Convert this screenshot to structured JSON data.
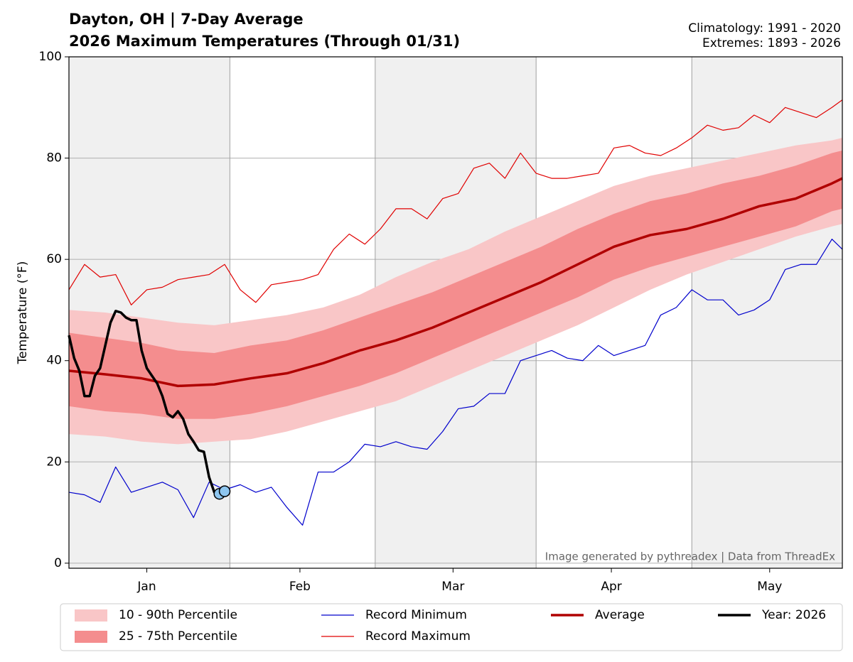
{
  "chart_data": {
    "type": "line",
    "title": "Dayton, OH | 7-Day Average",
    "subtitle": "2026 Maximum Temperatures (Through 01/31)",
    "right_notes": [
      "Climatology: 1991 - 2020",
      "Extremes: 1893 - 2026"
    ],
    "annotation": "Image generated by pythreadex | Data from ThreadEx",
    "y_label": "Temperature (°F)",
    "xlim": [
      1,
      150
    ],
    "ylim": [
      -1,
      100
    ],
    "yticks": [
      0,
      20,
      40,
      60,
      80,
      100
    ],
    "xticks": [
      {
        "value": 16,
        "label": "Jan"
      },
      {
        "value": 45.5,
        "label": "Feb"
      },
      {
        "value": 75,
        "label": "Mar"
      },
      {
        "value": 105.5,
        "label": "Apr"
      },
      {
        "value": 136,
        "label": "May"
      }
    ],
    "xgrid": [
      32,
      60,
      91,
      121
    ],
    "grid": true,
    "shade_color": "#f0f0f0",
    "legend": "bottom",
    "series": [
      {
        "name": "10 - 90th Percentile",
        "kind": "band",
        "color": "#f9c6c7",
        "x": [
          1,
          8,
          15,
          22,
          29,
          36,
          43,
          50,
          57,
          64,
          71,
          78,
          85,
          92,
          99,
          106,
          113,
          120,
          127,
          134,
          141,
          148,
          150
        ],
        "lower": [
          25.5,
          25,
          24,
          23.5,
          24,
          24.5,
          26,
          28,
          30,
          32,
          35,
          38,
          41,
          44,
          47,
          50.5,
          54,
          57,
          59.5,
          62,
          64.5,
          66.5,
          67
        ],
        "upper": [
          50,
          49.5,
          48.5,
          47.5,
          47,
          48,
          49,
          50.5,
          53,
          56.5,
          59.5,
          62,
          65.5,
          68.5,
          71.5,
          74.5,
          76.5,
          78,
          79.5,
          81,
          82.5,
          83.5,
          84
        ]
      },
      {
        "name": "25 - 75th Percentile",
        "kind": "band",
        "color": "#f48d8e",
        "x": [
          1,
          8,
          15,
          22,
          29,
          36,
          43,
          50,
          57,
          64,
          71,
          78,
          85,
          92,
          99,
          106,
          113,
          120,
          127,
          134,
          141,
          148,
          150
        ],
        "lower": [
          31,
          30,
          29.5,
          28.5,
          28.5,
          29.5,
          31,
          33,
          35,
          37.5,
          40.5,
          43.5,
          46.5,
          49.5,
          52.5,
          56,
          58.5,
          60.5,
          62.5,
          64.5,
          66.5,
          69.5,
          70
        ],
        "upper": [
          45.5,
          44.5,
          43.5,
          42,
          41.5,
          43,
          44,
          46,
          48.5,
          51,
          53.5,
          56.5,
          59.5,
          62.5,
          66,
          69,
          71.5,
          73,
          75,
          76.5,
          78.5,
          81,
          81.5
        ]
      },
      {
        "name": "Record Minimum",
        "kind": "line",
        "color": "#0000cc",
        "width": 1.2,
        "x": [
          1,
          4,
          7,
          10,
          13,
          16,
          19,
          22,
          25,
          28,
          31,
          34,
          37,
          40,
          43,
          46,
          49,
          52,
          55,
          58,
          61,
          64,
          67,
          70,
          73,
          76,
          79,
          82,
          85,
          88,
          91,
          94,
          97,
          100,
          103,
          106,
          109,
          112,
          115,
          118,
          121,
          124,
          127,
          130,
          133,
          136,
          139,
          142,
          145,
          148,
          150
        ],
        "values": [
          14,
          13.5,
          12,
          19,
          14,
          15,
          16,
          14.5,
          9,
          16,
          14.5,
          15.5,
          14,
          15,
          11,
          7.5,
          18,
          18,
          20,
          23.5,
          23,
          24,
          23,
          22.5,
          26,
          30.5,
          31,
          33.5,
          33.5,
          40,
          41,
          42,
          40.5,
          40,
          43,
          41,
          42,
          43,
          49,
          50.5,
          54,
          52,
          52,
          49,
          50,
          52,
          58,
          59,
          59,
          64,
          62
        ]
      },
      {
        "name": "Record Maximum",
        "kind": "line",
        "color": "#e00000",
        "width": 1.2,
        "x": [
          1,
          4,
          7,
          10,
          13,
          16,
          19,
          22,
          25,
          28,
          31,
          34,
          37,
          40,
          43,
          46,
          49,
          52,
          55,
          58,
          61,
          64,
          67,
          70,
          73,
          76,
          79,
          82,
          85,
          88,
          91,
          94,
          97,
          100,
          103,
          106,
          109,
          112,
          115,
          118,
          121,
          124,
          127,
          130,
          133,
          136,
          139,
          142,
          145,
          148,
          150
        ],
        "values": [
          54,
          59,
          56.5,
          57,
          51,
          54,
          54.5,
          56,
          56.5,
          57,
          59,
          54,
          51.5,
          55,
          55.5,
          56,
          57,
          62,
          65,
          63,
          66,
          70,
          70,
          68,
          72,
          73,
          78,
          79,
          76,
          81,
          77,
          76,
          76,
          76.5,
          77,
          82,
          82.5,
          81,
          80.5,
          82,
          84,
          86.5,
          85.5,
          86,
          88.5,
          87,
          90,
          89,
          88,
          90,
          91.5
        ]
      },
      {
        "name": "Average",
        "kind": "line",
        "color": "#b00000",
        "width": 3.5,
        "x": [
          1,
          8,
          15,
          22,
          29,
          36,
          43,
          50,
          57,
          64,
          71,
          78,
          85,
          92,
          99,
          106,
          113,
          120,
          127,
          134,
          141,
          148,
          150
        ],
        "values": [
          38,
          37.3,
          36.5,
          35,
          35.3,
          36.5,
          37.5,
          39.5,
          42,
          44,
          46.5,
          49.5,
          52.5,
          55.5,
          59,
          62.5,
          64.8,
          66,
          68,
          70.5,
          72,
          75,
          76
        ]
      },
      {
        "name": "Year: 2026",
        "kind": "line",
        "color": "#000000",
        "width": 3.5,
        "marker_color": "#8ec6ef",
        "x": [
          1,
          2,
          3,
          4,
          5,
          6,
          7,
          8,
          9,
          10,
          11,
          12,
          13,
          14,
          15,
          16,
          17,
          18,
          19,
          20,
          21,
          22,
          23,
          24,
          25,
          26,
          27,
          28,
          29,
          30,
          31
        ],
        "values": [
          45,
          40.5,
          38,
          33,
          33,
          37,
          38.5,
          43,
          47.5,
          49.8,
          49.5,
          48.5,
          48,
          48,
          42,
          38.5,
          37,
          35.5,
          33,
          29.5,
          28.8,
          30,
          28.5,
          25.5,
          24,
          22.3,
          22,
          17,
          14,
          13.7,
          14.2
        ]
      }
    ]
  }
}
